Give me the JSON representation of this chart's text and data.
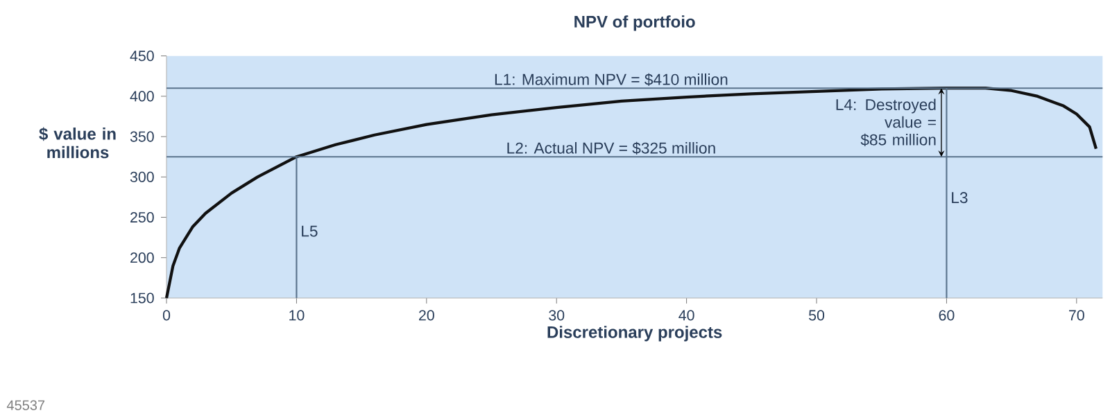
{
  "chart_data": {
    "type": "line",
    "title": "NPV of portfoio",
    "xlabel": "Discretionary projects",
    "ylabel": "$ value in millions",
    "series": [
      {
        "color": "#111111",
        "x": [
          0,
          0.5,
          1,
          2,
          3,
          5,
          7,
          10,
          13,
          16,
          20,
          25,
          30,
          35,
          40,
          45,
          50,
          55,
          60,
          63,
          65,
          67,
          69,
          70,
          71,
          71.5
        ],
        "values": [
          150,
          190,
          212,
          238,
          255,
          280,
          300,
          325,
          340,
          352,
          365,
          377,
          386,
          394,
          399,
          403,
          406,
          409,
          410,
          410,
          407,
          400,
          388,
          378,
          362,
          335
        ]
      }
    ],
    "xlim": [
      0,
      72
    ],
    "ylim": [
      150,
      450
    ],
    "xticks": [
      0,
      10,
      20,
      30,
      40,
      50,
      60,
      70
    ],
    "yticks": [
      150,
      200,
      250,
      300,
      350,
      400,
      450
    ],
    "grid": false,
    "marker": "none",
    "line_style": "solid",
    "ref_lines": [
      {
        "axis": "y",
        "value": 410,
        "label": "L1: Maximum NPV = $410 million",
        "color": "#5a738c"
      },
      {
        "axis": "y",
        "value": 325,
        "label": "L2: Actual NPV = $325 million",
        "color": "#5a738c"
      },
      {
        "axis": "x",
        "value": 60,
        "label": "L3",
        "color": "#5a738c"
      },
      {
        "axis": "x",
        "value": 10,
        "label": "L5",
        "color": "#5a738c"
      }
    ],
    "annotations": [
      {
        "text": "L4: Destroyed value = $85 million",
        "x": 60,
        "y": 367.5
      },
      "45537"
    ]
  }
}
